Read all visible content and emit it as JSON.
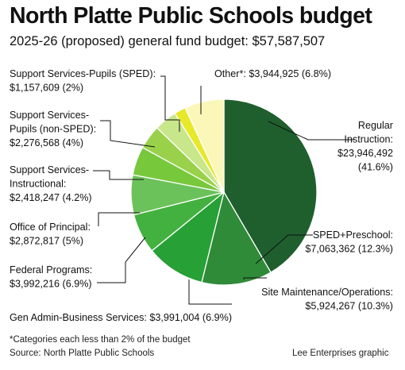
{
  "title": "North Platte Public Schools budget",
  "subtitle": "2025-26 (proposed) general fund budget: $57,587,507",
  "chart_data": {
    "type": "pie",
    "title": "North Platte Public Schools budget",
    "subtitle": "2025-26 (proposed) general fund budget: $57,587,507",
    "total": 57587507,
    "slices": [
      {
        "name": "Regular Instruction:",
        "value": 23946492,
        "amount": "$23,946,492",
        "percent": "(41.6%)",
        "color": "#1f5f2e"
      },
      {
        "name": "SPED+Preschool:",
        "value": 7063362,
        "amount": "$7,063,362",
        "percent": "(12.3%)",
        "color": "#2f8b38"
      },
      {
        "name": "Site Maintenance/Operations:",
        "value": 5924267,
        "amount": "$5,924,267",
        "percent": "(10.3%)",
        "color": "#27a036"
      },
      {
        "name": "Gen Admin-Business Services:",
        "value": 3991004,
        "amount": "$3,991,004",
        "percent": "(6.9%)",
        "color": "#43b13f"
      },
      {
        "name": "Federal Programs:",
        "value": 3992216,
        "amount": "$3,992,216",
        "percent": "(6.9%)",
        "color": "#6cc25a"
      },
      {
        "name": "Office of Principal:",
        "value": 2872817,
        "amount": "$2,872,817",
        "percent": "(5%)",
        "color": "#78c83c"
      },
      {
        "name": "Support Services-Instructional:",
        "value": 2418247,
        "amount": "$2,418,247",
        "percent": "(4.2%)",
        "color": "#99d24a"
      },
      {
        "name": "Support Services-Pupils (non-SPED):",
        "value": 2276568,
        "amount": "$2,276,568",
        "percent": "(4%)",
        "color": "#c8e68a"
      },
      {
        "name": "Support Services-Pupils (SPED):",
        "value": 1157609,
        "amount": "$1,157,609",
        "percent": "(2%)",
        "color": "#e6e82a"
      },
      {
        "name": "Other*:",
        "value": 3944925,
        "amount": "$3,944,925",
        "percent": "(6.8%)",
        "color": "#fbf7b8"
      }
    ],
    "labels": [
      {
        "lines": [
          "Regular",
          "Instruction:",
          "$23,946,492",
          "(41.6%)"
        ]
      },
      {
        "lines": [
          "SPED+Preschool:",
          "$7,063,362 (12.3%)"
        ]
      },
      {
        "lines": [
          "Site Maintenance/Operations:",
          "$5,924,267 (10.3%)"
        ]
      },
      {
        "lines": [
          "Gen Admin-Business Services: $3,991,004 (6.9%)"
        ]
      },
      {
        "lines": [
          "Federal Programs:",
          "$3,992,216 (6.9%)"
        ]
      },
      {
        "lines": [
          "Office of Principal:",
          "$2,872,817 (5%)"
        ]
      },
      {
        "lines": [
          "Support Services-",
          "Instructional:",
          "$2,418,247 (4.2%)"
        ]
      },
      {
        "lines": [
          "Support Services-",
          "Pupils (non-SPED):",
          "$2,276,568 (4%)"
        ]
      },
      {
        "lines": [
          "Support Services-Pupils (SPED):",
          "$1,157,609 (2%)"
        ]
      },
      {
        "lines": [
          "Other*: $3,944,925 (6.8%)"
        ]
      }
    ]
  },
  "footnote": "*Categories each less than 2% of the budget",
  "source": "Source: North Platte Public Schools",
  "credit": "Lee Enterprises graphic"
}
